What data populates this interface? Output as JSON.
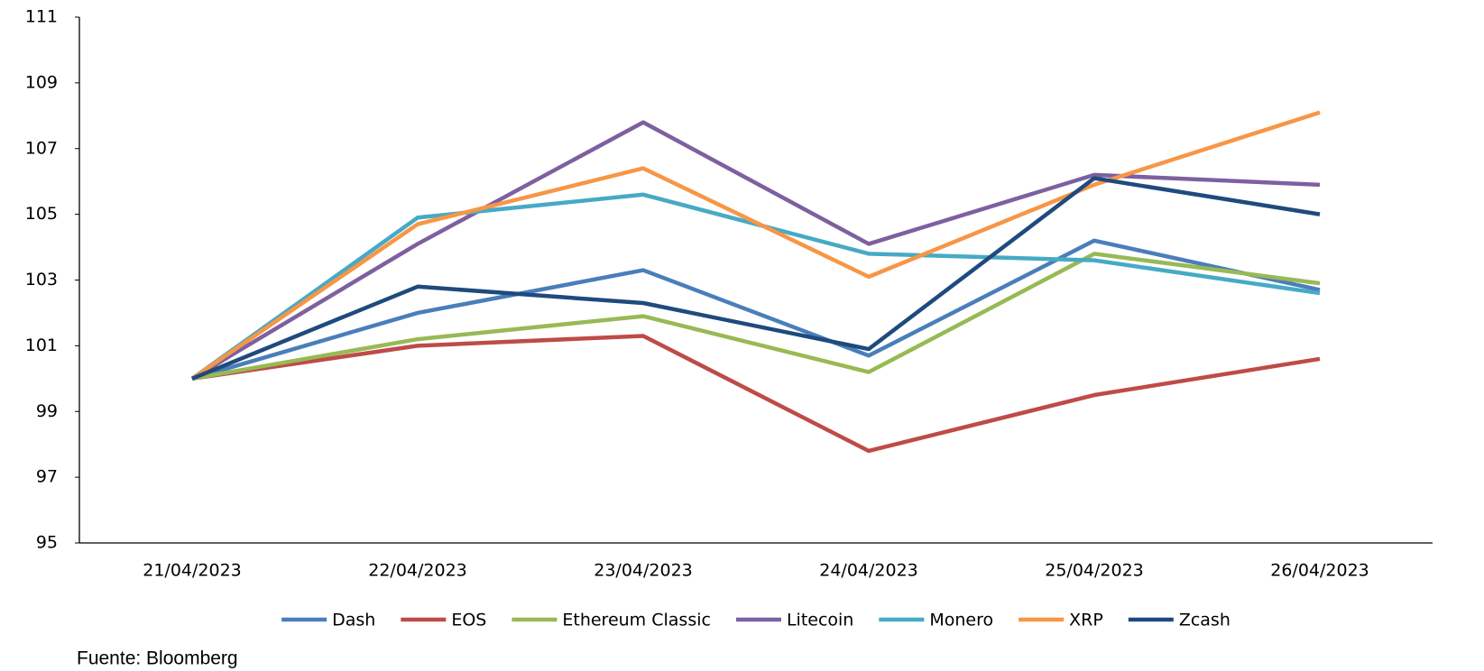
{
  "chart_data": {
    "type": "line",
    "categories": [
      "21/04/2023",
      "22/04/2023",
      "23/04/2023",
      "24/04/2023",
      "25/04/2023",
      "26/04/2023"
    ],
    "series": [
      {
        "name": "Dash",
        "color": "#4a7ebb",
        "values": [
          100,
          102.0,
          103.3,
          100.7,
          104.2,
          102.7
        ]
      },
      {
        "name": "EOS",
        "color": "#be4b48",
        "values": [
          100,
          101.0,
          101.3,
          97.8,
          99.5,
          100.6
        ]
      },
      {
        "name": "Ethereum Classic",
        "color": "#98b954",
        "values": [
          100,
          101.2,
          101.9,
          100.2,
          103.8,
          102.9
        ]
      },
      {
        "name": "Litecoin",
        "color": "#7d60a0",
        "values": [
          100,
          104.1,
          107.8,
          104.1,
          106.2,
          105.9
        ]
      },
      {
        "name": "Monero",
        "color": "#46aac5",
        "values": [
          100,
          104.9,
          105.6,
          103.8,
          103.6,
          102.6
        ]
      },
      {
        "name": "XRP",
        "color": "#f79646",
        "values": [
          100,
          104.7,
          106.4,
          103.1,
          105.9,
          108.1
        ]
      },
      {
        "name": "Zcash",
        "color": "#1f4a7d",
        "values": [
          100,
          102.8,
          102.3,
          100.9,
          106.1,
          105.0
        ]
      }
    ],
    "ylim": [
      95,
      111
    ],
    "yticks": [
      95,
      97,
      99,
      101,
      103,
      105,
      107,
      109,
      111
    ],
    "grid": false,
    "legend": "bottom",
    "source": "Fuente: Bloomberg"
  }
}
